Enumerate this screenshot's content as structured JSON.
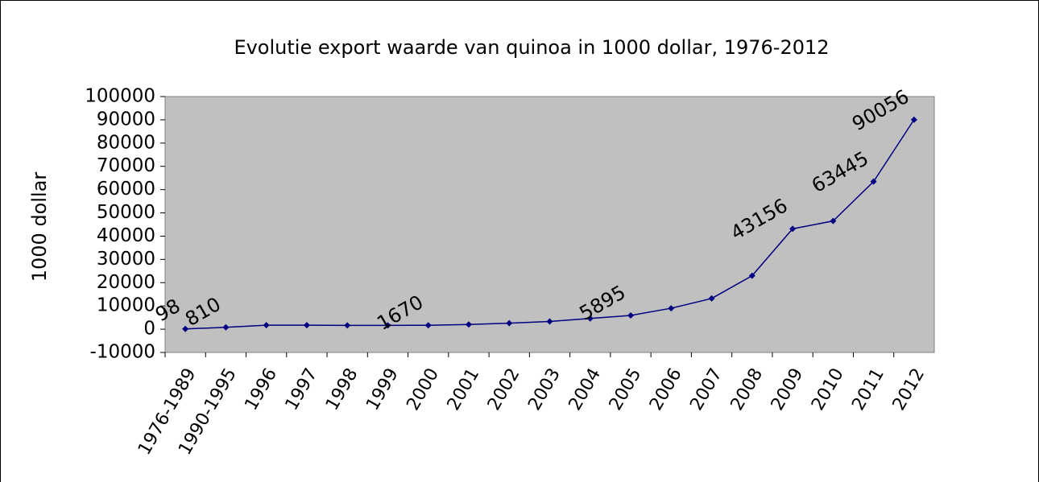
{
  "chart_data": {
    "type": "line",
    "title": "Evolutie export waarde van quinoa in 1000 dollar, 1976-2012",
    "y_label": "1000 dollar",
    "categories": [
      "1976-1989",
      "1990-1995",
      "1996",
      "1997",
      "1998",
      "1999",
      "2000",
      "2001",
      "2002",
      "2003",
      "2004",
      "2005",
      "2006",
      "2007",
      "2008",
      "2009",
      "2010",
      "2011",
      "2012"
    ],
    "series": [
      {
        "name": "export waarde",
        "color": "#000080",
        "values": [
          98,
          810,
          1700,
          1700,
          1650,
          1650,
          1670,
          2000,
          2600,
          3300,
          4600,
          5895,
          9000,
          13200,
          23000,
          43156,
          46500,
          63445,
          90056
        ],
        "value_labels": [
          "98",
          "810",
          null,
          null,
          null,
          null,
          "1670",
          null,
          null,
          null,
          null,
          "5895",
          null,
          null,
          null,
          "43156",
          null,
          "63445",
          "90056"
        ]
      }
    ],
    "ylim": [
      -10000,
      100000
    ],
    "yticks": [
      -10000,
      0,
      10000,
      20000,
      30000,
      40000,
      50000,
      60000,
      70000,
      80000,
      90000,
      100000
    ],
    "grid": false,
    "plot_background": "#c0c0c0"
  }
}
